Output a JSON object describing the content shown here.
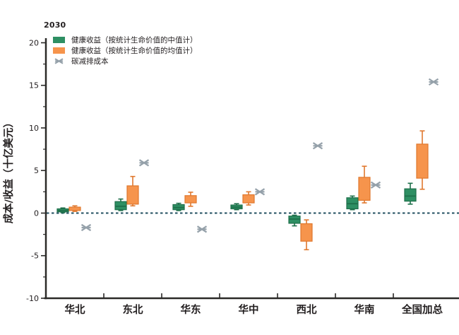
{
  "legend": {
    "title": "2030",
    "items": [
      {
        "swatch": "box",
        "color": "#2e8f63",
        "label": "健康收益（按统计生命价值的中值计）"
      },
      {
        "swatch": "box",
        "color": "#f6944c",
        "label": "健康收益（按统计生命价值的均值计）"
      },
      {
        "swatch": "xmark",
        "color": "#95a1aa",
        "label": "碳减排成本"
      }
    ]
  },
  "chart_data": {
    "type": "boxplot",
    "title": "2030",
    "ylabel": "成本/收益（十亿美元）",
    "xlabel": "",
    "categories": [
      "华北",
      "东北",
      "华东",
      "华中",
      "西北",
      "华南",
      "全国加总"
    ],
    "ylim": [
      -10,
      20
    ],
    "yticks": [
      20,
      15,
      10,
      5,
      0,
      -5,
      -10
    ],
    "minor_ytick_step": 2.5,
    "grid": false,
    "legend_position": "top-left",
    "zero_line": {
      "value": 0,
      "style": "dashed",
      "color": "#1f4e5f"
    },
    "axis_color": "#2b2a28",
    "series": [
      {
        "name": "健康收益（按统计生命价值的中值计）",
        "type": "box",
        "color": "#2e8f63",
        "edge_color": "#1e6f4a",
        "x_offset": -17,
        "boxes": [
          {
            "q1": 0.15,
            "q3": 0.5,
            "median": 0.3,
            "lo": 0.05,
            "hi": 0.6
          },
          {
            "q1": 0.4,
            "q3": 1.35,
            "median": 0.8,
            "lo": 0.3,
            "hi": 1.65
          },
          {
            "q1": 0.4,
            "q3": 1.0,
            "median": 0.65,
            "lo": 0.3,
            "hi": 1.15
          },
          {
            "q1": 0.5,
            "q3": 0.95,
            "median": 0.7,
            "lo": 0.4,
            "hi": 1.1
          },
          {
            "q1": -1.2,
            "q3": -0.35,
            "median": -0.7,
            "lo": -1.5,
            "hi": -0.25
          },
          {
            "q1": 0.5,
            "q3": 1.8,
            "median": 1.1,
            "lo": 0.4,
            "hi": 2.0
          },
          {
            "q1": 1.4,
            "q3": 2.85,
            "median": 2.0,
            "lo": 1.05,
            "hi": 3.5
          }
        ]
      },
      {
        "name": "健康收益（按统计生命价值的均值计）",
        "type": "box",
        "color": "#f6944c",
        "edge_color": "#e0782e",
        "x_offset": 0,
        "boxes": [
          {
            "q1": 0.3,
            "q3": 0.7,
            "median": null,
            "lo": 0.2,
            "hi": 0.85
          },
          {
            "q1": 1.05,
            "q3": 3.2,
            "median": null,
            "lo": 0.85,
            "hi": 4.3
          },
          {
            "q1": 1.2,
            "q3": 2.05,
            "median": null,
            "lo": 0.8,
            "hi": 2.45
          },
          {
            "q1": 1.2,
            "q3": 2.15,
            "median": null,
            "lo": 0.95,
            "hi": 2.5
          },
          {
            "q1": -3.3,
            "q3": -1.25,
            "median": null,
            "lo": -4.3,
            "hi": -0.8
          },
          {
            "q1": 1.5,
            "q3": 4.2,
            "median": null,
            "lo": 1.2,
            "hi": 5.5
          },
          {
            "q1": 4.1,
            "q3": 8.1,
            "median": null,
            "lo": 2.8,
            "hi": 9.65
          }
        ]
      },
      {
        "name": "碳减排成本",
        "type": "xmark",
        "color": "#95a1aa",
        "x_offset": 16,
        "values": [
          -1.7,
          5.9,
          -1.9,
          2.5,
          7.9,
          3.3,
          15.4
        ]
      }
    ]
  }
}
